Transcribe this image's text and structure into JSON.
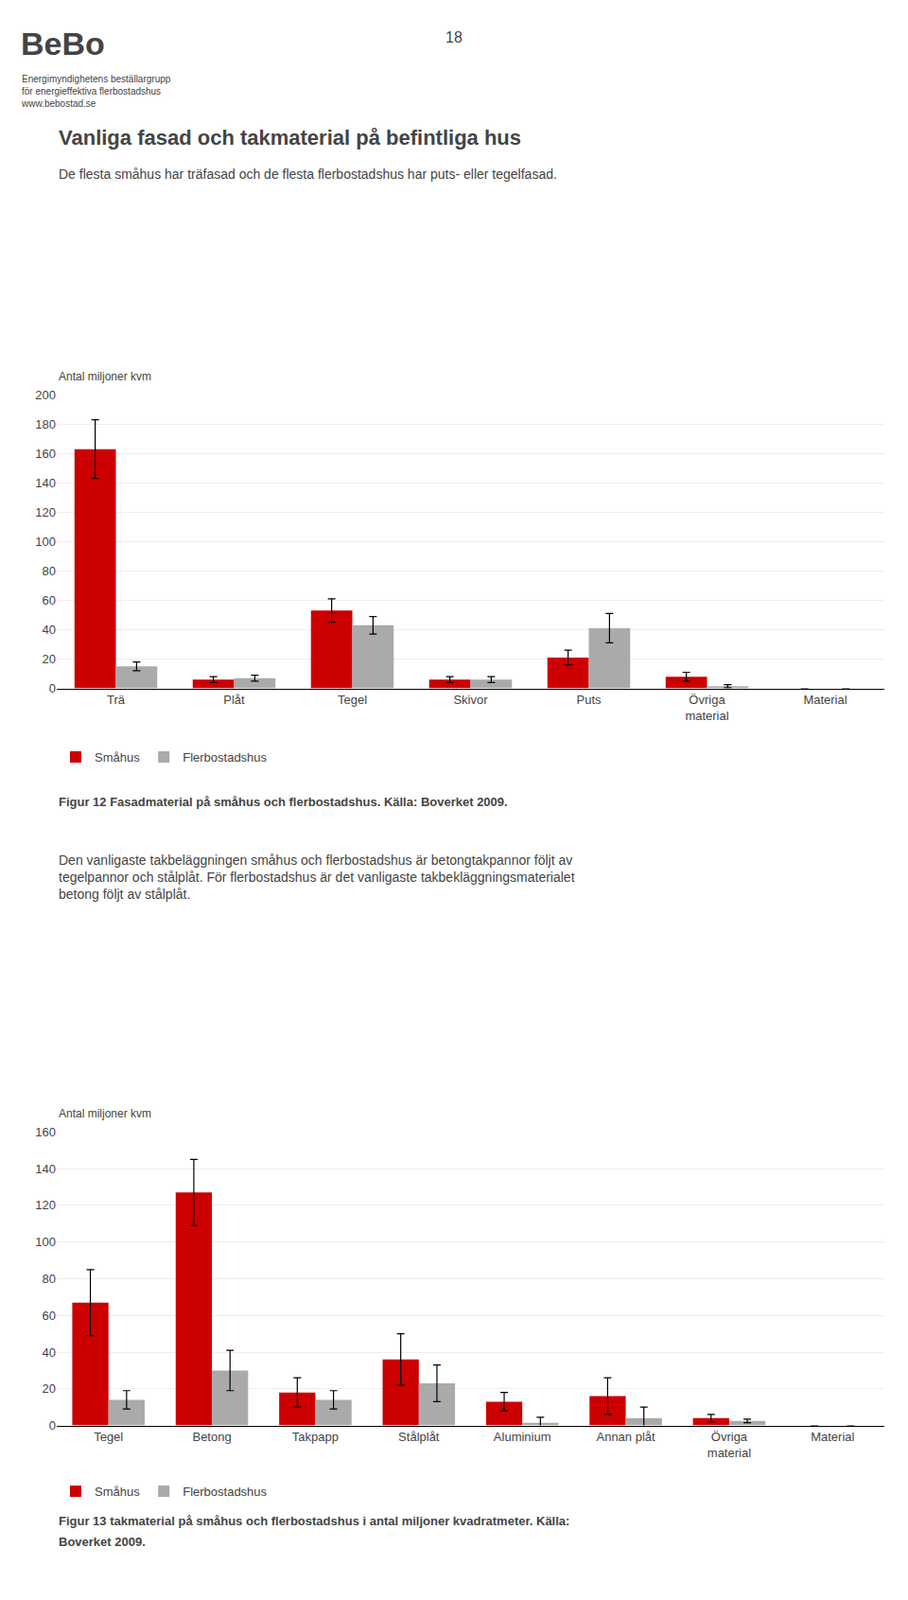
{
  "chart_data": [
    {
      "type": "bar",
      "title": "Vanliga fasad och takmaterial på befintliga hus",
      "subtitle": "De flesta småhus har träfasad och de flesta flerbostadshus har puts- eller tegelfasad.",
      "ylabel": "Antal miljoner kvm",
      "categories": [
        "Trä",
        "Plåt",
        "Tegel",
        "Skivor",
        "Puts",
        "Övriga\nmaterial",
        "Material"
      ],
      "series": [
        {
          "name": "Småhus",
          "color": "#cc0000",
          "values": [
            163,
            6,
            53,
            6,
            21,
            8,
            0
          ],
          "errors": [
            20,
            2,
            8,
            2,
            5,
            3,
            0
          ]
        },
        {
          "name": "Flerbostadshus",
          "color": "#aaaaaa",
          "values": [
            15,
            7,
            43,
            6,
            41,
            1.5,
            0
          ],
          "errors": [
            3,
            2,
            6,
            2,
            10,
            1,
            0
          ]
        }
      ],
      "ylim": [
        0,
        200
      ],
      "yticks": [
        0,
        20,
        40,
        60,
        80,
        100,
        120,
        140,
        160,
        180,
        200
      ],
      "grid": true,
      "legend": "bottom",
      "annotations": [
        "18",
        "BeBo",
        "Energimyndighetens beställargrupp\nför energieffektiva flerbostadshus\nwww.bebostad.se",
        "Figur 12 Fasadmaterial på småhus och flerbostadshus. Källa: Boverket 2009."
      ]
    },
    {
      "type": "bar",
      "ylabel": "Antal miljoner kvm",
      "categories": [
        "Tegel",
        "Betong",
        "Takpapp",
        "Stålplåt",
        "Aluminium",
        "Annan plåt",
        "Övriga\nmaterial",
        "Material"
      ],
      "series": [
        {
          "name": "Småhus",
          "color": "#cc0000",
          "values": [
            67,
            127,
            18,
            36,
            13,
            16,
            4,
            0
          ],
          "errors": [
            18,
            18,
            8,
            14,
            5,
            10,
            2,
            0
          ]
        },
        {
          "name": "Flerbostadshus",
          "color": "#aaaaaa",
          "values": [
            14,
            30,
            14,
            23,
            1.5,
            4,
            2.5,
            0
          ],
          "errors": [
            5,
            11,
            5,
            10,
            3,
            6,
            1,
            0
          ]
        }
      ],
      "ylim": [
        0,
        160
      ],
      "yticks": [
        0,
        20,
        40,
        60,
        80,
        100,
        120,
        140,
        160
      ],
      "grid": true,
      "legend": "bottom",
      "annotations": [
        "Den vanligaste takbeläggningen småhus och flerbostadshus är betongtakpannor följt av\ntegelpannor och stålplåt. För flerbostadshus är det vanligaste takbekläggningsmaterialet\nbetong följt av stålplåt.",
        "Figur 13 takmaterial på småhus och flerbostadshus i antal miljoner kvadratmeter. Källa:",
        "Boverket 2009."
      ]
    }
  ]
}
